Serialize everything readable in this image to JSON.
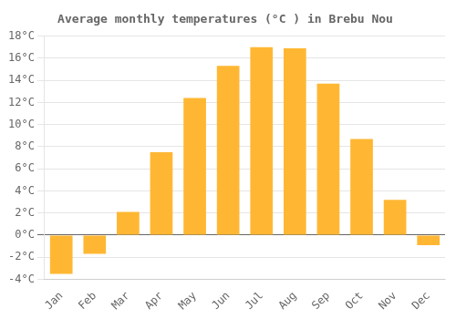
{
  "chart_data": {
    "type": "bar",
    "title": "Average monthly temperatures (°C ) in Brebu Nou",
    "categories": [
      "Jan",
      "Feb",
      "Mar",
      "Apr",
      "May",
      "Jun",
      "Jul",
      "Aug",
      "Sep",
      "Oct",
      "Nov",
      "Dec"
    ],
    "values": [
      -3.5,
      -1.7,
      2.1,
      7.5,
      12.4,
      15.3,
      17.0,
      16.9,
      13.7,
      8.7,
      3.2,
      -0.9
    ],
    "color": "#FFB733",
    "ylim": [
      -4,
      18
    ],
    "yticks": [
      {
        "value": -4,
        "label": "-4°C"
      },
      {
        "value": -2,
        "label": "-2°C"
      },
      {
        "value": 0,
        "label": "0°C"
      },
      {
        "value": 2,
        "label": "2°C"
      },
      {
        "value": 4,
        "label": "4°C"
      },
      {
        "value": 6,
        "label": "6°C"
      },
      {
        "value": 8,
        "label": "8°C"
      },
      {
        "value": 10,
        "label": "10°C"
      },
      {
        "value": 12,
        "label": "12°C"
      },
      {
        "value": 14,
        "label": "14°C"
      },
      {
        "value": 16,
        "label": "16°C"
      },
      {
        "value": 18,
        "label": "18°C"
      }
    ],
    "grid": true
  }
}
